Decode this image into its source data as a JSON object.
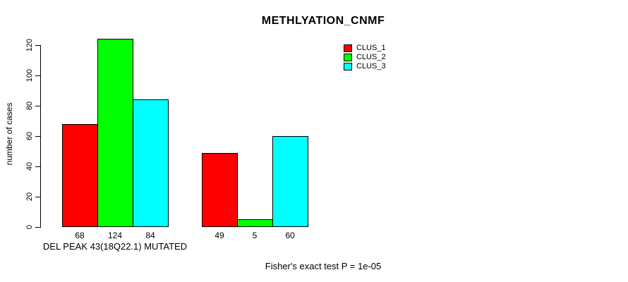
{
  "chart_data": {
    "type": "bar",
    "title": "METHLYATION_CNMF",
    "ylabel": "number of cases",
    "xlabel": "DEL PEAK 43(18Q22.1) MUTATED",
    "annotation": "Fisher's exact test P = 1e-05",
    "ylim": [
      0,
      120
    ],
    "yticks": [
      0,
      20,
      40,
      60,
      80,
      100,
      120
    ],
    "categories": [
      "DEL PEAK 43(18Q22.1) MUTATED",
      ""
    ],
    "series": [
      {
        "name": "CLUS_1",
        "color": "#ff0000",
        "values": [
          68,
          49
        ]
      },
      {
        "name": "CLUS_2",
        "color": "#00ff00",
        "values": [
          124,
          5
        ]
      },
      {
        "name": "CLUS_3",
        "color": "#00ffff",
        "values": [
          84,
          60
        ]
      }
    ],
    "bar_value_labels": [
      [
        "68",
        "124",
        "84"
      ],
      [
        "49",
        "5",
        "60"
      ]
    ],
    "legend_position": "top-right",
    "grid": false,
    "background_color": "#ffffff",
    "axis_color": "#000000",
    "text_color": "#000000"
  }
}
